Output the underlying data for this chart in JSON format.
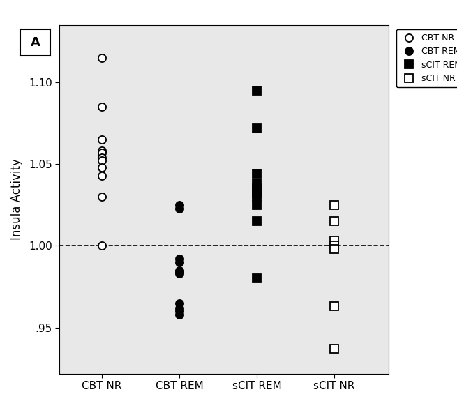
{
  "title": "",
  "ylabel": "Insula Activity",
  "xlabel": "",
  "categories": [
    "CBT NR",
    "CBT REM",
    "sCIT REM",
    "sCIT NR"
  ],
  "ylim": [
    0.922,
    1.135
  ],
  "yticks": [
    0.95,
    1.0,
    1.05,
    1.1
  ],
  "ytick_labels": [
    ".95",
    "1.00",
    "1.05",
    "1.10"
  ],
  "dashed_line_y": 1.0,
  "background_color": "#e8e8e8",
  "CBT_NR": [
    1.115,
    1.085,
    1.065,
    1.058,
    1.057,
    1.054,
    1.052,
    1.048,
    1.043,
    1.03,
    1.0
  ],
  "CBT_REM": [
    1.025,
    1.023,
    0.992,
    0.99,
    0.985,
    0.984,
    0.983,
    0.965,
    0.962,
    0.96,
    0.958
  ],
  "sCIT_REM": [
    1.095,
    1.072,
    1.044,
    1.038,
    1.035,
    1.032,
    1.03,
    1.025,
    1.015,
    0.98
  ],
  "sCIT_NR": [
    1.025,
    1.015,
    1.003,
    1.0,
    0.998,
    0.963,
    0.937
  ],
  "CBT_NR_marker": "o",
  "CBT_REM_marker": "o",
  "sCIT_REM_marker": "s",
  "sCIT_NR_marker": "s",
  "CBT_NR_facecolor": "white",
  "CBT_NR_edgecolor": "black",
  "CBT_REM_facecolor": "black",
  "CBT_REM_edgecolor": "black",
  "sCIT_REM_facecolor": "black",
  "sCIT_REM_edgecolor": "black",
  "sCIT_NR_facecolor": "white",
  "sCIT_NR_edgecolor": "black",
  "markersize": 8,
  "panel_label": "A",
  "fig_width": 6.55,
  "fig_height": 5.95,
  "dpi": 100
}
